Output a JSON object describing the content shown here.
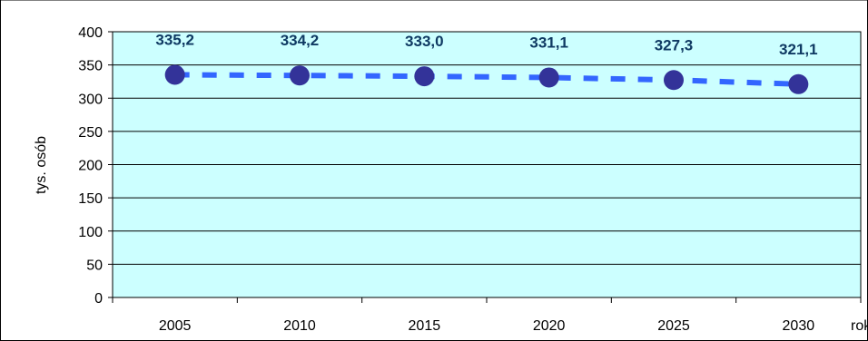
{
  "chart_data": {
    "type": "line",
    "x": [
      "2005",
      "2010",
      "2015",
      "2020",
      "2025",
      "2030"
    ],
    "series": [
      {
        "values": [
          335.2,
          334.2,
          333.0,
          331.1,
          327.3,
          321.1
        ]
      }
    ],
    "data_labels": [
      "335,2",
      "334,2",
      "333,0",
      "331,1",
      "327,3",
      "321,1"
    ],
    "ylabel": "tys. osób",
    "xlabel": "rok",
    "ylim": [
      0,
      400
    ],
    "yticks": [
      0,
      50,
      100,
      150,
      200,
      250,
      300,
      350,
      400
    ],
    "grid": true,
    "colors": {
      "plot_background": "#ccffff",
      "line": "#3366ff",
      "marker": "#333399",
      "data_label": "#0f3a63",
      "gridline": "#000000"
    }
  }
}
